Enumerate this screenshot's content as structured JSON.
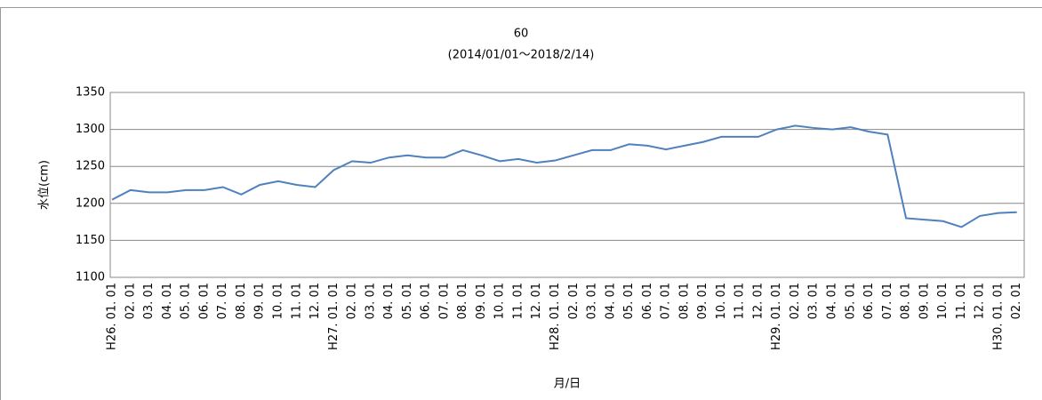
{
  "chart_data": {
    "type": "line",
    "title": "60",
    "subtitle": "(2014/01/01～2018/2/14)",
    "y_label": "水位(cm)",
    "x_label": "月/日",
    "categories": [
      "H26. 01. 01",
      "02. 01",
      "03. 01",
      "04. 01",
      "05. 01",
      "06. 01",
      "07. 01",
      "08. 01",
      "09. 01",
      "10. 01",
      "11. 01",
      "12. 01",
      "H27. 01. 01",
      "02. 01",
      "03. 01",
      "04. 01",
      "05. 01",
      "06. 01",
      "07. 01",
      "08. 01",
      "09. 01",
      "10. 01",
      "11. 01",
      "12. 01",
      "H28. 01. 01",
      "02. 01",
      "03. 01",
      "04. 01",
      "05. 01",
      "06. 01",
      "07. 01",
      "08. 01",
      "09. 01",
      "10. 01",
      "11. 01",
      "12. 01",
      "H29. 01. 01",
      "02. 01",
      "03. 01",
      "04. 01",
      "05. 01",
      "06. 01",
      "07. 01",
      "08. 01",
      "09. 01",
      "10. 01",
      "11. 01",
      "12. 01",
      "H30. 01. 01",
      "02. 01"
    ],
    "series": [
      {
        "name": "水位",
        "color": "#4f81bd",
        "values": [
          1205,
          1218,
          1215,
          1215,
          1218,
          1218,
          1222,
          1212,
          1225,
          1230,
          1225,
          1222,
          1245,
          1257,
          1255,
          1262,
          1265,
          1262,
          1262,
          1272,
          1265,
          1257,
          1260,
          1255,
          1258,
          1265,
          1272,
          1272,
          1280,
          1278,
          1273,
          1278,
          1283,
          1290,
          1290,
          1290,
          1300,
          1305,
          1302,
          1300,
          1303,
          1297,
          1293,
          1180,
          1178,
          1176,
          1168,
          1183,
          1187,
          1188
        ]
      }
    ],
    "ylim": [
      1100,
      1350
    ],
    "yticks": [
      1100,
      1150,
      1200,
      1250,
      1300,
      1350
    ],
    "grid": true
  }
}
